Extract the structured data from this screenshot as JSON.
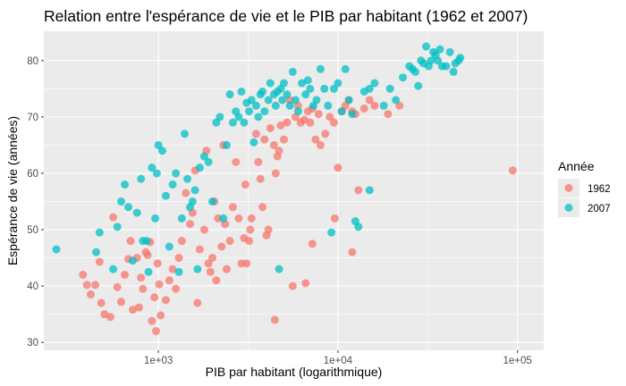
{
  "chart_data": {
    "type": "scatter",
    "title": "Relation entre l'espérance de vie et le PIB par habitant (1962 et 2007)",
    "xlabel": "PIB par habitant (logarithmique)",
    "ylabel": "Espérance de vie (années)",
    "x_scale": "log10",
    "xlim": [
      230,
      140000
    ],
    "ylim": [
      28.6,
      85.2
    ],
    "x_ticks": [
      1000,
      10000,
      100000
    ],
    "x_tick_labels": [
      "1e+03",
      "1e+04",
      "1e+05"
    ],
    "y_ticks": [
      30,
      40,
      50,
      60,
      70,
      80
    ],
    "y_tick_labels": [
      "30",
      "40",
      "50",
      "60",
      "70",
      "80"
    ],
    "grid": true,
    "legend": {
      "title": "Année",
      "position": "right"
    },
    "series": [
      {
        "name": "1962",
        "color": "#F8766D",
        "points": [
          [
            380,
            42
          ],
          [
            400,
            40.2
          ],
          [
            420,
            38.5
          ],
          [
            445,
            40.2
          ],
          [
            470,
            44.3
          ],
          [
            480,
            37
          ],
          [
            500,
            35
          ],
          [
            540,
            34.5
          ],
          [
            560,
            52.2
          ],
          [
            590,
            39.8
          ],
          [
            620,
            37.2
          ],
          [
            650,
            42
          ],
          [
            680,
            44.8
          ],
          [
            700,
            48
          ],
          [
            720,
            35.8
          ],
          [
            760,
            45
          ],
          [
            780,
            36.2
          ],
          [
            800,
            41.5
          ],
          [
            820,
            39.5
          ],
          [
            850,
            46
          ],
          [
            870,
            45.5
          ],
          [
            900,
            47.8
          ],
          [
            920,
            33.8
          ],
          [
            950,
            38
          ],
          [
            970,
            32
          ],
          [
            990,
            44
          ],
          [
            1010,
            40.3
          ],
          [
            1030,
            34.8
          ],
          [
            1100,
            37.5
          ],
          [
            1150,
            41
          ],
          [
            1200,
            43
          ],
          [
            1250,
            39.5
          ],
          [
            1300,
            45
          ],
          [
            1350,
            48
          ],
          [
            1420,
            56.5
          ],
          [
            1500,
            51
          ],
          [
            1550,
            53
          ],
          [
            1600,
            60.5
          ],
          [
            1650,
            37
          ],
          [
            1700,
            46.5
          ],
          [
            1800,
            50
          ],
          [
            1850,
            64
          ],
          [
            1900,
            44
          ],
          [
            1950,
            42.5
          ],
          [
            2000,
            45
          ],
          [
            2050,
            55
          ],
          [
            2100,
            41
          ],
          [
            2150,
            52
          ],
          [
            2250,
            47
          ],
          [
            2300,
            65
          ],
          [
            2350,
            51
          ],
          [
            2400,
            43
          ],
          [
            2500,
            48
          ],
          [
            2600,
            54
          ],
          [
            2700,
            62
          ],
          [
            2800,
            52
          ],
          [
            2900,
            44
          ],
          [
            3000,
            48.5
          ],
          [
            3050,
            58
          ],
          [
            3100,
            44
          ],
          [
            3200,
            48
          ],
          [
            3250,
            50
          ],
          [
            3300,
            52
          ],
          [
            3500,
            67
          ],
          [
            3600,
            62
          ],
          [
            3700,
            59
          ],
          [
            3800,
            54
          ],
          [
            3900,
            66
          ],
          [
            4000,
            49
          ],
          [
            4100,
            50
          ],
          [
            4200,
            68
          ],
          [
            4400,
            65
          ],
          [
            4500,
            60
          ],
          [
            4600,
            63
          ],
          [
            4700,
            64
          ],
          [
            4800,
            68.5
          ],
          [
            5000,
            66
          ],
          [
            5200,
            69
          ],
          [
            5400,
            73
          ],
          [
            5600,
            40
          ],
          [
            5800,
            70
          ],
          [
            6000,
            72
          ],
          [
            6200,
            69
          ],
          [
            6500,
            69.5
          ],
          [
            6800,
            71
          ],
          [
            7000,
            69
          ],
          [
            7200,
            71.5
          ],
          [
            7500,
            66
          ],
          [
            7800,
            70.5
          ],
          [
            8000,
            65
          ],
          [
            8500,
            67
          ],
          [
            9000,
            70
          ],
          [
            9500,
            69
          ],
          [
            10000,
            61
          ],
          [
            10500,
            71
          ],
          [
            11000,
            72
          ],
          [
            11500,
            73
          ],
          [
            12000,
            71
          ],
          [
            12500,
            70.5
          ],
          [
            13000,
            57
          ],
          [
            14000,
            71.5
          ],
          [
            15000,
            73
          ],
          [
            16000,
            72
          ],
          [
            19000,
            70.5
          ],
          [
            22000,
            72
          ],
          [
            94000,
            60.5
          ],
          [
            4450,
            34
          ],
          [
            6600,
            40.5
          ],
          [
            12000,
            46
          ],
          [
            7200,
            47.5
          ],
          [
            9600,
            52
          ]
        ]
      },
      {
        "name": "2007",
        "color": "#00BFC4",
        "points": [
          [
            270,
            46.5
          ],
          [
            450,
            46
          ],
          [
            470,
            49.5
          ],
          [
            560,
            43
          ],
          [
            590,
            50.5
          ],
          [
            620,
            55
          ],
          [
            650,
            58
          ],
          [
            680,
            54
          ],
          [
            720,
            44.5
          ],
          [
            760,
            53
          ],
          [
            800,
            59
          ],
          [
            820,
            48
          ],
          [
            860,
            48
          ],
          [
            880,
            42.5
          ],
          [
            920,
            61
          ],
          [
            960,
            52
          ],
          [
            980,
            60
          ],
          [
            1000,
            65
          ],
          [
            1050,
            64
          ],
          [
            1100,
            56
          ],
          [
            1150,
            47
          ],
          [
            1200,
            58
          ],
          [
            1250,
            60
          ],
          [
            1300,
            42.5
          ],
          [
            1350,
            52
          ],
          [
            1400,
            67
          ],
          [
            1450,
            59
          ],
          [
            1500,
            54
          ],
          [
            1550,
            55
          ],
          [
            1600,
            57
          ],
          [
            1650,
            43
          ],
          [
            1700,
            61
          ],
          [
            1800,
            63
          ],
          [
            1900,
            62
          ],
          [
            2000,
            55
          ],
          [
            2100,
            69
          ],
          [
            2200,
            70
          ],
          [
            2300,
            52
          ],
          [
            2400,
            65
          ],
          [
            2500,
            74
          ],
          [
            2600,
            69
          ],
          [
            2700,
            71
          ],
          [
            2800,
            70
          ],
          [
            2900,
            74.5
          ],
          [
            3000,
            69
          ],
          [
            3100,
            72.5
          ],
          [
            3200,
            71
          ],
          [
            3300,
            73
          ],
          [
            3400,
            65.5
          ],
          [
            3500,
            72
          ],
          [
            3600,
            70
          ],
          [
            3700,
            74
          ],
          [
            3800,
            74.5
          ],
          [
            3900,
            71
          ],
          [
            4100,
            73
          ],
          [
            4200,
            76
          ],
          [
            4400,
            74
          ],
          [
            4500,
            72
          ],
          [
            4600,
            74.5
          ],
          [
            4700,
            43
          ],
          [
            4800,
            75
          ],
          [
            4900,
            73
          ],
          [
            5000,
            76
          ],
          [
            5200,
            74
          ],
          [
            5400,
            72
          ],
          [
            5600,
            78
          ],
          [
            5800,
            73
          ],
          [
            6000,
            71
          ],
          [
            6300,
            76
          ],
          [
            6600,
            74
          ],
          [
            6800,
            76.5
          ],
          [
            7000,
            75
          ],
          [
            7300,
            72
          ],
          [
            7600,
            73
          ],
          [
            8000,
            78.5
          ],
          [
            8400,
            75
          ],
          [
            8800,
            72
          ],
          [
            9200,
            49.5
          ],
          [
            9500,
            75
          ],
          [
            10000,
            76
          ],
          [
            10500,
            71
          ],
          [
            11000,
            78.5
          ],
          [
            11500,
            73
          ],
          [
            12000,
            70.5
          ],
          [
            12500,
            51.5
          ],
          [
            13000,
            50.5
          ],
          [
            14000,
            74.5
          ],
          [
            15000,
            75
          ],
          [
            16000,
            76
          ],
          [
            18000,
            72
          ],
          [
            19500,
            75
          ],
          [
            21000,
            73
          ],
          [
            23000,
            77
          ],
          [
            25000,
            79
          ],
          [
            27000,
            78
          ],
          [
            29000,
            80
          ],
          [
            31000,
            82.5
          ],
          [
            33000,
            80
          ],
          [
            35000,
            81
          ],
          [
            37000,
            82
          ],
          [
            40000,
            79
          ],
          [
            42000,
            81.5
          ],
          [
            45000,
            79.5
          ],
          [
            47000,
            80
          ],
          [
            15000,
            57
          ],
          [
            26000,
            78.5
          ],
          [
            28000,
            75.5
          ],
          [
            30000,
            79.5
          ],
          [
            32000,
            79
          ],
          [
            34000,
            81.5
          ],
          [
            36000,
            80
          ],
          [
            38000,
            79
          ],
          [
            44000,
            78
          ],
          [
            48000,
            80.5
          ]
        ]
      }
    ]
  }
}
